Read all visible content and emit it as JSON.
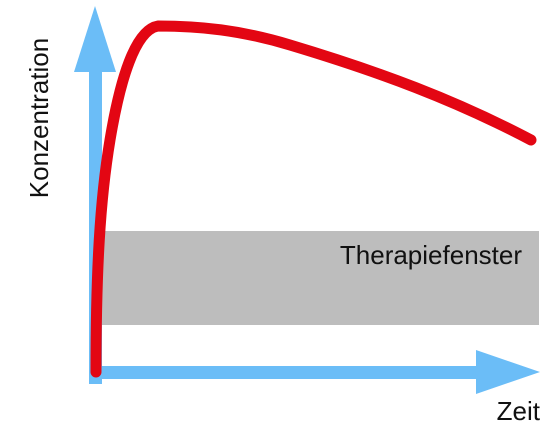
{
  "labels": {
    "y_axis": "Konzentration",
    "x_axis": "Zeit",
    "band": "Therapiefenster"
  },
  "colors": {
    "axis": "#6bbdf7",
    "curve": "#e30613",
    "band": "#bdbdbd",
    "text": "#111111"
  },
  "icons": {
    "x_axis_end": "arrow-right-icon",
    "y_axis_end": "arrow-up-icon"
  }
}
